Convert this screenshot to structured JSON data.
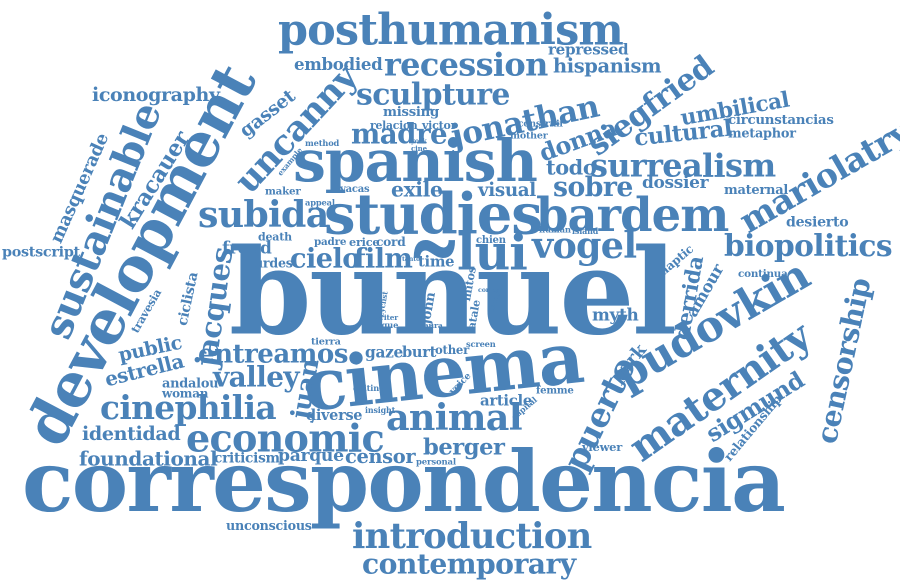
{
  "colors": {
    "word": "#4a82b8",
    "background": "#ffffff"
  },
  "words": [
    "buñuel",
    "correspondencia",
    "spanish",
    "studies",
    "cinema",
    "development",
    "posthumanism",
    "recession",
    "sculpture",
    "uncanny",
    "sustainable",
    "bardem",
    "subida",
    "lui",
    "vogel",
    "pudovkin",
    "maternity",
    "animal",
    "economic",
    "introduction",
    "contemporary",
    "surrealism",
    "jonathan",
    "siegfried",
    "cultural",
    "umbilical",
    "mariolatry",
    "biopolitics",
    "censorship",
    "sigmund",
    "cinephilia",
    "foundational",
    "berger",
    "censor",
    "parque",
    "criticism",
    "identidad",
    "valley",
    "entreamos",
    "gaze",
    "burt",
    "cielo",
    "film",
    "time",
    "jacques",
    "juan",
    "puerto",
    "park",
    "derrida",
    "amour",
    "madre",
    "donna",
    "todo",
    "sobre",
    "dossier",
    "visual",
    "exile",
    "iconography",
    "gasset",
    "kracauer",
    "masquerade",
    "postscript",
    "public",
    "estrella",
    "andalou",
    "woman",
    "travesia",
    "ciclista",
    "circunstancias",
    "metaphor",
    "maternal",
    "desierto",
    "continua",
    "haptic",
    "hispanism",
    "repressed",
    "embodied",
    "missing",
    "relacion",
    "victor",
    "construir",
    "mother",
    "method",
    "example",
    "maker",
    "vacas",
    "appeal",
    "death",
    "freud",
    "hurdes",
    "padre",
    "erice",
    "cord",
    "chien",
    "human",
    "island",
    "myth",
    "john",
    "mitos",
    "fatale",
    "other",
    "screen",
    "tierra",
    "editing",
    "insight",
    "diverse",
    "article",
    "capital",
    "femme",
    "voice",
    "viewer",
    "relationship",
    "personal",
    "unconscious",
    "writer",
    "argue",
    "laura",
    "cyclist",
    "como",
    "tendra",
    "york",
    "cine",
    "tanto"
  ]
}
